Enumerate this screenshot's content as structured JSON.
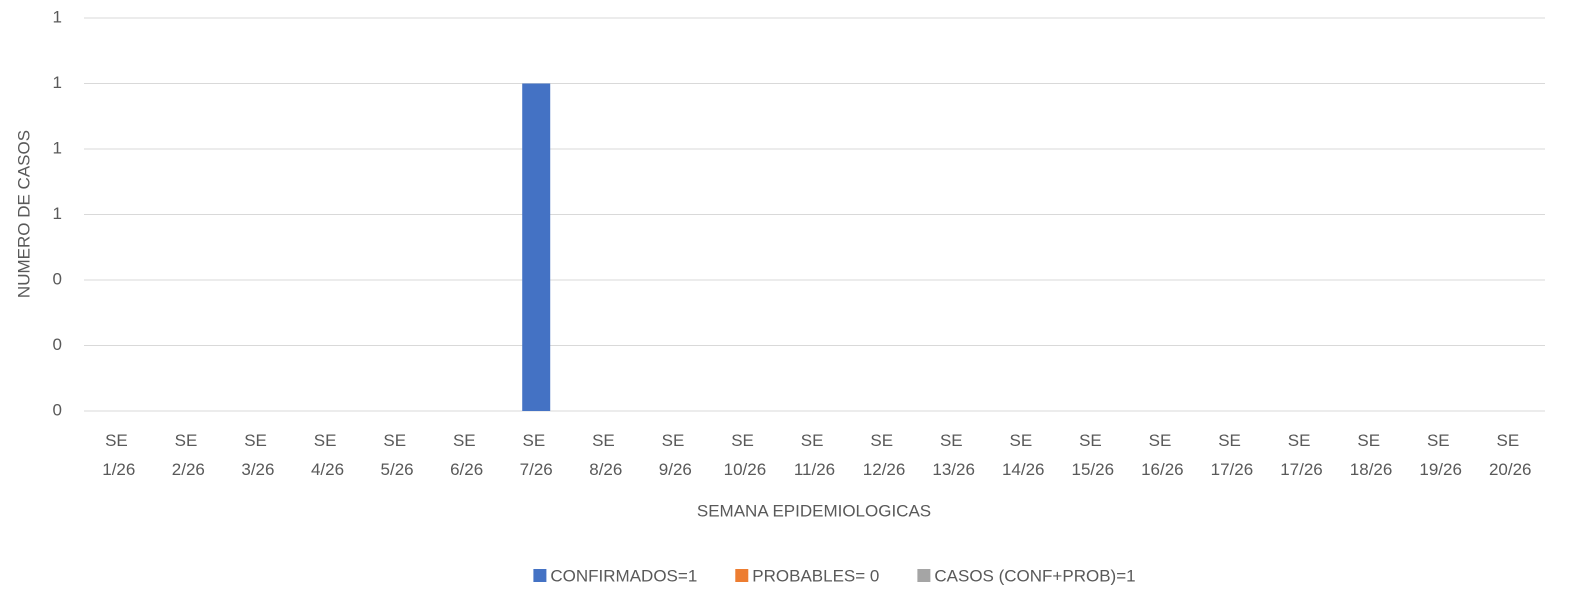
{
  "chart_data": {
    "type": "bar",
    "stacked": true,
    "x_label": "SEMANA EPIDEMIOLOGICAS",
    "y_label": "NUMERO DE CASOS",
    "categories": [
      "SE 1/26",
      "SE 2/26",
      "SE 3/26",
      "SE 4/26",
      "SE 5/26",
      "SE 6/26",
      "SE 7/26",
      "SE 8/26",
      "SE 9/26",
      "SE 10/26",
      "SE 11/26",
      "SE 12/26",
      "SE 13/26",
      "SE 14/26",
      "SE 15/26",
      "SE 16/26",
      "SE 17/26",
      "SE 17/26",
      "SE 18/26",
      "SE 19/26",
      "SE 20/26"
    ],
    "series": [
      {
        "name": "CONFIRMADOS=1",
        "color": "#4472c4",
        "values": [
          0,
          0,
          0,
          0,
          0,
          0,
          1,
          0,
          0,
          0,
          0,
          0,
          0,
          0,
          0,
          0,
          0,
          0,
          0,
          0,
          0
        ]
      },
      {
        "name": "PROBABLES= 0",
        "color": "#ed7d31",
        "values": [
          0,
          0,
          0,
          0,
          0,
          0,
          0,
          0,
          0,
          0,
          0,
          0,
          0,
          0,
          0,
          0,
          0,
          0,
          0,
          0,
          0
        ]
      },
      {
        "name": "CASOS (CONF+PROB)=1",
        "color": "#a5a5a5",
        "values": [
          0,
          0,
          0,
          0,
          0,
          0,
          0,
          0,
          0,
          0,
          0,
          0,
          0,
          0,
          0,
          0,
          0,
          0,
          0,
          0,
          0
        ]
      }
    ],
    "ylim": [
      0,
      1.2
    ],
    "yticks": [
      0,
      {
        "value": 0.2,
        "label": "0"
      },
      {
        "value": 0.4,
        "label": "0"
      },
      {
        "value": 0.6,
        "label": "1"
      },
      {
        "value": 0.8,
        "label": "1"
      },
      {
        "value": 1.0,
        "label": "1"
      },
      {
        "value": 1.2,
        "label": "1"
      }
    ],
    "grid": true,
    "legend": "bottom"
  }
}
